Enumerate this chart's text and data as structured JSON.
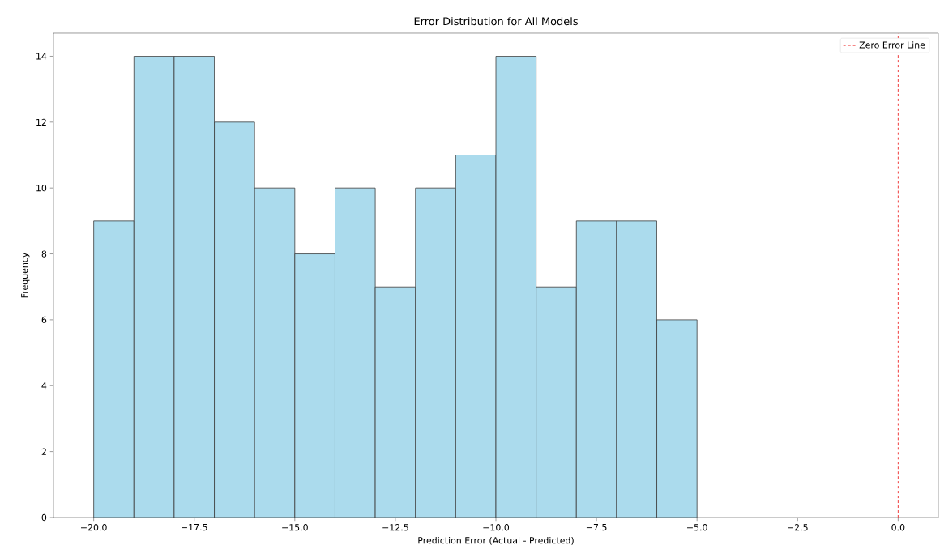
{
  "chart_data": {
    "type": "histogram",
    "title": "Error Distribution for All Models",
    "xlabel": "Prediction Error (Actual - Predicted)",
    "ylabel": "Frequency",
    "bins": [
      -20,
      -19,
      -18,
      -17,
      -16,
      -15,
      -14,
      -13,
      -12,
      -11,
      -10,
      -9,
      -8,
      -7,
      -6,
      -5
    ],
    "values": [
      9,
      14,
      14,
      12,
      10,
      8,
      10,
      7,
      10,
      11,
      14,
      7,
      9,
      9,
      6
    ],
    "color": "#abdbed",
    "xlim": [
      -21,
      1
    ],
    "ylim": [
      0,
      14.7
    ],
    "xticks": [
      {
        "value": -20,
        "label": "−20.0"
      },
      {
        "value": -17.5,
        "label": "−17.5"
      },
      {
        "value": -15,
        "label": "−15.0"
      },
      {
        "value": -12.5,
        "label": "−12.5"
      },
      {
        "value": -10,
        "label": "−10.0"
      },
      {
        "value": -7.5,
        "label": "−7.5"
      },
      {
        "value": -5,
        "label": "−5.0"
      },
      {
        "value": -2.5,
        "label": "−2.5"
      },
      {
        "value": 0,
        "label": "0.0"
      }
    ],
    "yticks": [
      0,
      2,
      4,
      6,
      8,
      10,
      12,
      14
    ],
    "ref_lines": [
      {
        "axis": "x",
        "value": 0,
        "label": "Zero Error Line",
        "color": "#f03c3c",
        "line_style": "dashed"
      }
    ],
    "legend": "top right",
    "grid": false
  }
}
